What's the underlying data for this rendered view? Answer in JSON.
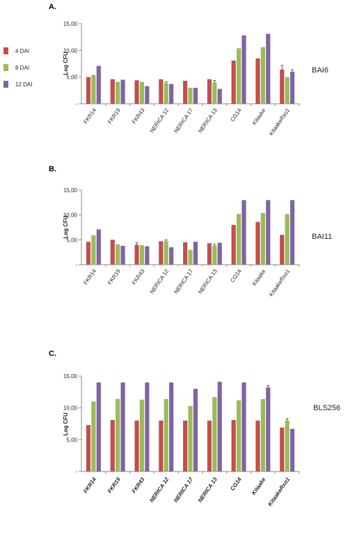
{
  "legend": {
    "entries": [
      "4 DAI",
      "8 DAI",
      "12 DAI"
    ]
  },
  "colors": {
    "4 DAI": "#C0504D",
    "8 DAI": "#9BBB59",
    "12 DAI": "#8064A2",
    "axis": "#888888"
  },
  "chart_data": [
    {
      "type": "bar",
      "panel": "A.",
      "strain": "BAI6",
      "ylabel": "Log CFU",
      "xlabel": "",
      "ylim": [
        0,
        15
      ],
      "yticks": [
        "-",
        "5,00",
        "10,00",
        "15,00"
      ],
      "categories": [
        "FKR14",
        "FKR19",
        "FKR43",
        "NERICA 12",
        "NERICA 17",
        "NERICA 13",
        "CG14",
        "Kitaake",
        "KitaakeRxo1"
      ],
      "series": [
        {
          "name": "4 DAI",
          "values": [
            5.0,
            4.6,
            4.4,
            4.6,
            4.3,
            4.6,
            8.1,
            8.5,
            6.4
          ],
          "errors": [
            0,
            0,
            0,
            0,
            0,
            0,
            0,
            0,
            0.8
          ]
        },
        {
          "name": "8 DAI",
          "values": [
            5.2,
            4.1,
            4.1,
            3.9,
            3.0,
            4.0,
            10.4,
            10.6,
            5.0
          ],
          "errors": [
            0.1,
            0,
            0,
            0.2,
            0,
            0.4,
            0,
            0,
            0
          ]
        },
        {
          "name": "12 DAI",
          "values": [
            7.1,
            4.5,
            3.3,
            3.7,
            3.0,
            2.8,
            12.8,
            13.1,
            6.0
          ],
          "errors": [
            0,
            0,
            0,
            0,
            0,
            0,
            0,
            0,
            0.4
          ]
        }
      ]
    },
    {
      "type": "bar",
      "panel": "B.",
      "strain": "BAI11",
      "ylabel": "Log CFU",
      "xlabel": "",
      "ylim": [
        0,
        15
      ],
      "yticks": [
        "-",
        "5,00",
        "10,00",
        "15,00"
      ],
      "categories": [
        "FKR14",
        "FKR19",
        "FKR43",
        "NERICA 12",
        "NERICA 17",
        "NERICA 13",
        "CG14",
        "Kitaake",
        "KitaakeRxo1"
      ],
      "series": [
        {
          "name": "4 DAI",
          "values": [
            4.6,
            5.0,
            4.0,
            4.7,
            4.5,
            4.3,
            8.0,
            8.6,
            6.0
          ],
          "errors": [
            0,
            0,
            0.4,
            0,
            0,
            0,
            0,
            0,
            0
          ]
        },
        {
          "name": "8 DAI",
          "values": [
            5.9,
            4.1,
            3.9,
            4.7,
            3.0,
            3.8,
            10.2,
            10.4,
            10.2
          ],
          "errors": [
            0,
            0,
            0,
            0.3,
            0,
            0.3,
            0,
            0,
            0
          ]
        },
        {
          "name": "12 DAI",
          "values": [
            7.1,
            3.8,
            3.7,
            3.5,
            4.6,
            4.4,
            13.0,
            13.0,
            13.0
          ],
          "errors": [
            0,
            0,
            0,
            0,
            0,
            0,
            0,
            0,
            0
          ]
        }
      ]
    },
    {
      "type": "bar",
      "panel": "C.",
      "strain": "BLS256",
      "ylabel": "Log CFU",
      "xlabel": "",
      "ylim": [
        0,
        15
      ],
      "yticks": [
        "-",
        "5,00",
        "10,00",
        "15,00"
      ],
      "categories": [
        "FKR14",
        "FKR19",
        "FKR43",
        "NERICA 12",
        "NERICA 17",
        "NERICA 13",
        "CG14",
        "Kitaake",
        "KitaakeRxo1"
      ],
      "series": [
        {
          "name": "4 DAI",
          "values": [
            7.3,
            8.1,
            8.0,
            8.0,
            8.0,
            8.0,
            8.1,
            8.0,
            6.9
          ],
          "errors": [
            0,
            0,
            0,
            0,
            0,
            0,
            0,
            0,
            0
          ]
        },
        {
          "name": "8 DAI",
          "values": [
            11.0,
            11.4,
            11.3,
            11.4,
            10.3,
            11.7,
            11.2,
            11.4,
            8.0
          ],
          "errors": [
            0,
            0,
            0,
            0,
            0,
            0,
            0,
            0,
            0.3
          ]
        },
        {
          "name": "12 DAI",
          "values": [
            14.0,
            14.0,
            14.0,
            14.0,
            13.0,
            14.1,
            14.0,
            13.2,
            6.7
          ],
          "errors": [
            0,
            0,
            0,
            0,
            0,
            0,
            0,
            0.3,
            0
          ]
        }
      ]
    }
  ]
}
